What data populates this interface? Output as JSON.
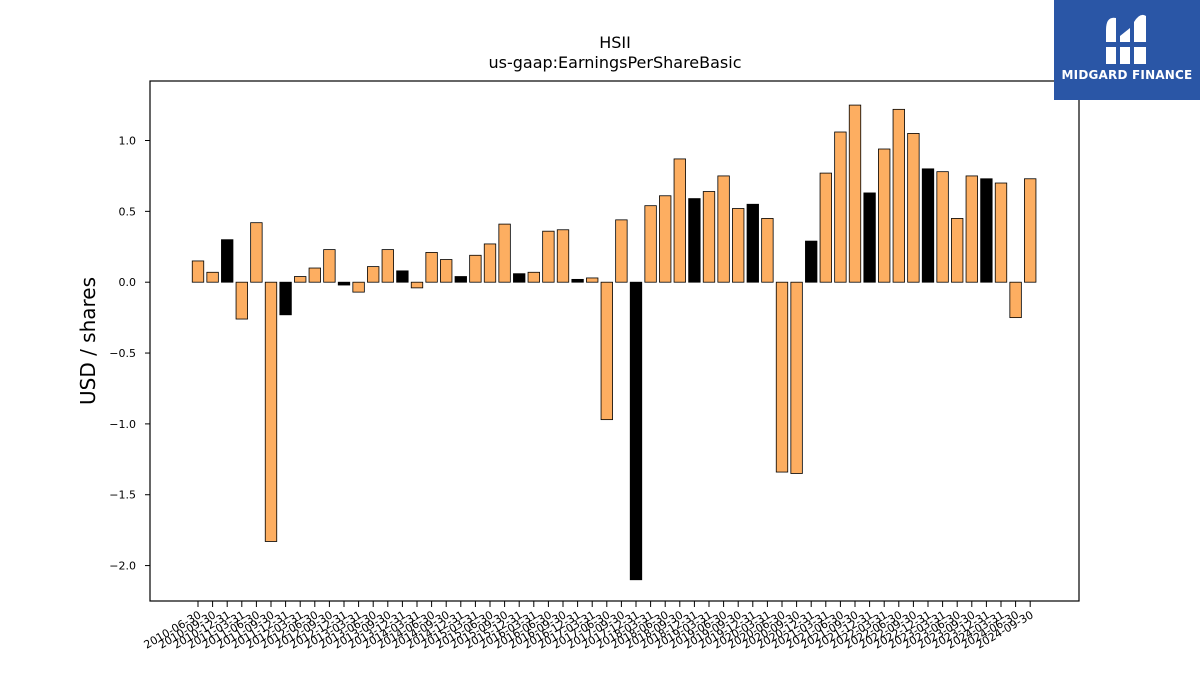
{
  "brand": {
    "name": "MIDGARD FINANCE",
    "logo_icon": "midgard-m-icon",
    "background": "#2a56a6"
  },
  "chart_data": {
    "type": "bar",
    "title": "HSII",
    "subtitle": "us-gaap:EarningsPerShareBasic",
    "xlabel": "",
    "ylabel": "USD / shares",
    "ylim": [
      -2.25,
      1.42
    ],
    "yticks": [
      1.0,
      0.5,
      0.0,
      -0.5,
      -1.0,
      -1.5,
      -2.0
    ],
    "ytick_labels": [
      "1.0",
      "0.5",
      "0.0",
      "−0.5",
      "−1.0",
      "−1.5",
      "−2.0"
    ],
    "grid": false,
    "colors": {
      "quarter": "#fdae61",
      "annual": "#000000",
      "edge": "#000000"
    },
    "categories": [
      "2010-06-30",
      "2010-09-30",
      "2010-12-31",
      "2011-03-31",
      "2011-06-30",
      "2011-09-30",
      "2011-12-31",
      "2012-03-31",
      "2012-06-30",
      "2012-09-30",
      "2012-12-31",
      "2013-03-31",
      "2013-06-30",
      "2013-09-30",
      "2013-12-31",
      "2014-03-31",
      "2014-06-30",
      "2014-09-30",
      "2014-12-31",
      "2015-03-31",
      "2015-06-30",
      "2015-09-30",
      "2015-12-31",
      "2016-03-31",
      "2016-06-30",
      "2016-09-30",
      "2016-12-31",
      "2017-03-31",
      "2017-06-30",
      "2017-09-30",
      "2017-12-31",
      "2018-03-31",
      "2018-06-30",
      "2018-09-30",
      "2018-12-31",
      "2019-03-31",
      "2019-06-30",
      "2019-09-30",
      "2019-12-31",
      "2020-03-31",
      "2020-06-30",
      "2020-09-30",
      "2020-12-31",
      "2021-03-31",
      "2021-06-30",
      "2021-09-30",
      "2021-12-31",
      "2022-03-31",
      "2022-06-30",
      "2022-09-30",
      "2022-12-31",
      "2023-03-31",
      "2023-06-30",
      "2023-09-30",
      "2023-12-31",
      "2024-03-31",
      "2024-06-30",
      "2024-09-30"
    ],
    "values": [
      0.15,
      0.07,
      0.3,
      -0.26,
      0.42,
      -1.83,
      -0.23,
      0.04,
      0.1,
      0.23,
      -0.02,
      -0.07,
      0.11,
      0.23,
      0.08,
      -0.04,
      0.21,
      0.16,
      0.04,
      0.19,
      0.27,
      0.41,
      0.06,
      0.07,
      0.36,
      0.37,
      0.02,
      0.03,
      -0.97,
      0.44,
      -2.1,
      0.54,
      0.61,
      0.87,
      0.59,
      0.64,
      0.75,
      0.52,
      0.55,
      0.45,
      -1.34,
      -1.35,
      0.29,
      0.77,
      1.06,
      1.25,
      0.63,
      0.94,
      1.22,
      1.05,
      0.8,
      0.78,
      0.45,
      0.75,
      0.73,
      0.7,
      -0.25,
      0.73
    ],
    "bar_kind": [
      "q",
      "q",
      "a",
      "q",
      "q",
      "q",
      "a",
      "q",
      "q",
      "q",
      "a",
      "q",
      "q",
      "q",
      "a",
      "q",
      "q",
      "q",
      "a",
      "q",
      "q",
      "q",
      "a",
      "q",
      "q",
      "q",
      "a",
      "q",
      "q",
      "q",
      "a",
      "q",
      "q",
      "q",
      "a",
      "q",
      "q",
      "q",
      "a",
      "q",
      "q",
      "q",
      "a",
      "q",
      "q",
      "q",
      "a",
      "q",
      "q",
      "q",
      "a",
      "q",
      "q",
      "q",
      "a",
      "q",
      "q",
      "q"
    ]
  }
}
